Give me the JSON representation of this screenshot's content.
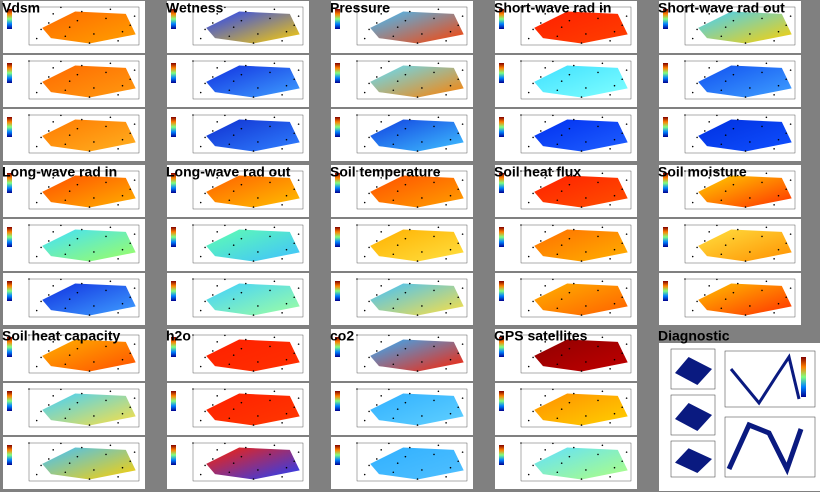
{
  "panels": [
    {
      "title": "Vdsm"
    },
    {
      "title": "Wetness"
    },
    {
      "title": "Pressure"
    },
    {
      "title": "Short-wave rad in"
    },
    {
      "title": "Short-wave rad out"
    },
    {
      "title": "Long-wave rad in"
    },
    {
      "title": "Long-wave rad out"
    },
    {
      "title": "Soil temperature"
    },
    {
      "title": "Soil heat flux"
    },
    {
      "title": "Soil moisture"
    },
    {
      "title": "Soil heat capacity"
    },
    {
      "title": "h2o"
    },
    {
      "title": "co2"
    },
    {
      "title": "GPS satellites"
    },
    {
      "title": "Diagnostic"
    }
  ]
}
